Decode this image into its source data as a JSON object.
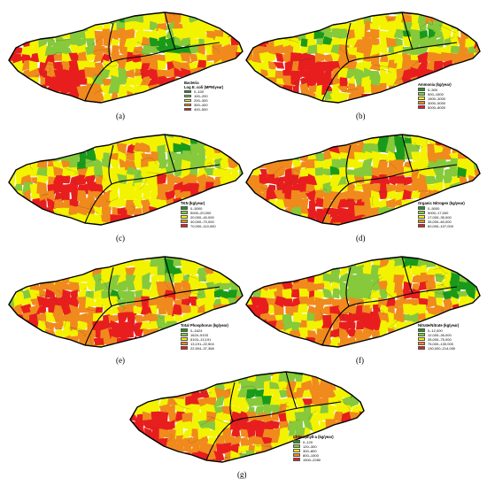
{
  "colors": {
    "c1": "#1a9a1a",
    "c2": "#86c93a",
    "c3": "#f3f300",
    "c4": "#f08a1c",
    "c5": "#e81e1e",
    "border": "#000000"
  },
  "panels": [
    {
      "id": "a",
      "caption": "(a)",
      "legend_title": "Bacteria\nLog E. coli (MPN/year)",
      "classes": [
        "0–100",
        "100–200",
        "200–300",
        "300–400",
        "400–500"
      ],
      "seed": 11
    },
    {
      "id": "b",
      "caption": "(b)",
      "legend_title": "Ammonia (kg/year)",
      "classes": [
        "0–500",
        "500–1500",
        "1500–3000",
        "3000–5000",
        "5000–8000"
      ],
      "seed": 23
    },
    {
      "id": "c",
      "caption": "(c)",
      "legend_title": "TKN (kg/year)",
      "classes": [
        "0–5000",
        "5000–20,000",
        "20,000–40,000",
        "40,000–70,000",
        "70,000–110,000"
      ],
      "seed": 37
    },
    {
      "id": "d",
      "caption": "(d)",
      "legend_title": "Organic Nitrogen (kg/year)",
      "classes": [
        "0–5000",
        "5000–17,000",
        "17,000–35,000",
        "35,000–60,000",
        "60,000–107,000"
      ],
      "seed": 41
    },
    {
      "id": "e",
      "caption": "(e)",
      "legend_title": "Total Phosphorus (kg/year)",
      "classes": [
        "0–1624",
        "1624–5103",
        "5103–13,191",
        "13,191–22,504",
        "22,504–37,368"
      ],
      "seed": 53
    },
    {
      "id": "f",
      "caption": "(f)",
      "legend_title": "Nitrate/Nitrate (kg/year)",
      "classes": [
        "0–12,000",
        "12,000–35,000",
        "35,000–75,000",
        "75,000–130,000",
        "130,000–214,000"
      ],
      "seed": 67
    },
    {
      "id": "g",
      "caption": "(g)",
      "legend_title": "Chlorophyll-a (kg/year)",
      "classes": [
        "0–120",
        "120–300",
        "300–800",
        "800–1500",
        "1500–2280"
      ],
      "seed": 79
    }
  ]
}
